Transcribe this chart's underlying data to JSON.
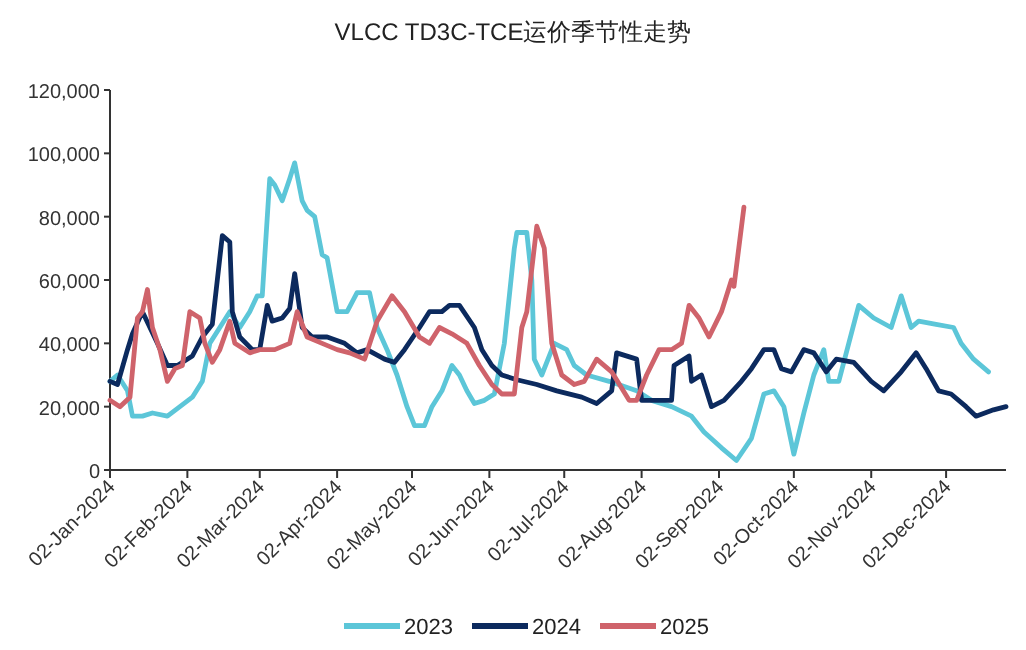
{
  "chart_data": {
    "type": "line",
    "title": "VLCC TD3C-TCE运价季节性走势",
    "xlim": [
      "2024-01-02",
      "2024-12-26"
    ],
    "xticks": [
      {
        "value": "2024-01-02",
        "label": "02-Jan-2024"
      },
      {
        "value": "2024-02-02",
        "label": "02-Feb-2024"
      },
      {
        "value": "2024-03-02",
        "label": "02-Mar-2024"
      },
      {
        "value": "2024-04-02",
        "label": "02-Apr-2024"
      },
      {
        "value": "2024-05-02",
        "label": "02-May-2024"
      },
      {
        "value": "2024-06-02",
        "label": "02-Jun-2024"
      },
      {
        "value": "2024-07-02",
        "label": "02-Jul-2024"
      },
      {
        "value": "2024-08-02",
        "label": "02-Aug-2024"
      },
      {
        "value": "2024-09-02",
        "label": "02-Sep-2024"
      },
      {
        "value": "2024-10-02",
        "label": "02-Oct-2024"
      },
      {
        "value": "2024-11-02",
        "label": "02-Nov-2024"
      },
      {
        "value": "2024-12-02",
        "label": "02-Dec-2024"
      }
    ],
    "ylim": [
      0,
      120000
    ],
    "yticks": [
      {
        "value": 0,
        "label": "0"
      },
      {
        "value": 20000,
        "label": "20,000"
      },
      {
        "value": 40000,
        "label": "40,000"
      },
      {
        "value": 60000,
        "label": "60,000"
      },
      {
        "value": 80000,
        "label": "80,000"
      },
      {
        "value": 100000,
        "label": "100,000"
      },
      {
        "value": 120000,
        "label": "120,000"
      }
    ],
    "legend": "bottom",
    "series": [
      {
        "name": "2023",
        "color": "#5cc6d8",
        "x": [
          "2024-01-02",
          "2024-01-05",
          "2024-01-09",
          "2024-01-11",
          "2024-01-15",
          "2024-01-19",
          "2024-01-25",
          "2024-01-30",
          "2024-02-04",
          "2024-02-08",
          "2024-02-11",
          "2024-02-15",
          "2024-02-19",
          "2024-02-23",
          "2024-02-27",
          "2024-03-01",
          "2024-03-03",
          "2024-03-06",
          "2024-03-08",
          "2024-03-11",
          "2024-03-14",
          "2024-03-16",
          "2024-03-19",
          "2024-03-21",
          "2024-03-24",
          "2024-03-27",
          "2024-03-29",
          "2024-04-02",
          "2024-04-06",
          "2024-04-10",
          "2024-04-15",
          "2024-04-18",
          "2024-04-22",
          "2024-04-26",
          "2024-04-30",
          "2024-05-03",
          "2024-05-07",
          "2024-05-10",
          "2024-05-14",
          "2024-05-18",
          "2024-05-21",
          "2024-05-24",
          "2024-05-27",
          "2024-05-31",
          "2024-06-04",
          "2024-06-08",
          "2024-06-12",
          "2024-06-13",
          "2024-06-17",
          "2024-06-19",
          "2024-06-20",
          "2024-06-23",
          "2024-06-28",
          "2024-07-03",
          "2024-07-06",
          "2024-07-11",
          "2024-07-20",
          "2024-07-31",
          "2024-08-06",
          "2024-08-14",
          "2024-08-22",
          "2024-08-27",
          "2024-09-03",
          "2024-09-09",
          "2024-09-15",
          "2024-09-20",
          "2024-09-24",
          "2024-09-28",
          "2024-10-02",
          "2024-10-06",
          "2024-10-10",
          "2024-10-14",
          "2024-10-16",
          "2024-10-20",
          "2024-10-24",
          "2024-10-28",
          "2024-11-03",
          "2024-11-10",
          "2024-11-14",
          "2024-11-18",
          "2024-11-21",
          "2024-11-28",
          "2024-12-05",
          "2024-12-08",
          "2024-12-13",
          "2024-12-19"
        ],
        "values": [
          28000,
          30000,
          25000,
          17000,
          17000,
          18000,
          17000,
          20000,
          23000,
          28000,
          40000,
          45000,
          50000,
          45000,
          50000,
          55000,
          55000,
          92000,
          90000,
          85000,
          92000,
          97000,
          85000,
          82000,
          80000,
          68000,
          67000,
          50000,
          50000,
          56000,
          56000,
          45000,
          38000,
          30000,
          20000,
          14000,
          14000,
          20000,
          25000,
          33000,
          30000,
          25000,
          21000,
          22000,
          24000,
          40000,
          70000,
          75000,
          75000,
          60000,
          35000,
          30000,
          40000,
          38000,
          33000,
          30000,
          28000,
          25000,
          22000,
          20000,
          17000,
          12000,
          7000,
          3000,
          10000,
          24000,
          25000,
          20000,
          5000,
          18000,
          30000,
          38000,
          28000,
          28000,
          40000,
          52000,
          48000,
          45000,
          55000,
          45000,
          47000,
          46000,
          45000,
          40000,
          35000,
          31000
        ]
      },
      {
        "name": "2024",
        "color": "#0c2a5e",
        "x": [
          "2024-01-02",
          "2024-01-05",
          "2024-01-09",
          "2024-01-11",
          "2024-01-15",
          "2024-01-21",
          "2024-01-25",
          "2024-01-29",
          "2024-02-04",
          "2024-02-08",
          "2024-02-12",
          "2024-02-16",
          "2024-02-19",
          "2024-02-20",
          "2024-02-23",
          "2024-02-28",
          "2024-03-02",
          "2024-03-05",
          "2024-03-07",
          "2024-03-11",
          "2024-03-14",
          "2024-03-16",
          "2024-03-19",
          "2024-03-23",
          "2024-03-29",
          "2024-04-05",
          "2024-04-10",
          "2024-04-14",
          "2024-04-21",
          "2024-04-25",
          "2024-04-29",
          "2024-05-05",
          "2024-05-09",
          "2024-05-14",
          "2024-05-17",
          "2024-05-21",
          "2024-05-27",
          "2024-05-30",
          "2024-06-03",
          "2024-06-07",
          "2024-06-13",
          "2024-06-21",
          "2024-06-29",
          "2024-07-09",
          "2024-07-15",
          "2024-07-21",
          "2024-07-23",
          "2024-07-31",
          "2024-08-02",
          "2024-08-06",
          "2024-08-14",
          "2024-08-15",
          "2024-08-21",
          "2024-08-22",
          "2024-08-26",
          "2024-08-30",
          "2024-09-04",
          "2024-09-11",
          "2024-09-15",
          "2024-09-20",
          "2024-09-24",
          "2024-09-27",
          "2024-10-01",
          "2024-10-06",
          "2024-10-10",
          "2024-10-15",
          "2024-10-19",
          "2024-10-26",
          "2024-11-02",
          "2024-11-07",
          "2024-11-14",
          "2024-11-20",
          "2024-11-24",
          "2024-11-29",
          "2024-12-04",
          "2024-12-10",
          "2024-12-14",
          "2024-12-21",
          "2024-12-26"
        ],
        "values": [
          28000,
          27000,
          38000,
          43000,
          50000,
          40000,
          33000,
          33000,
          36000,
          42000,
          46000,
          74000,
          72000,
          50000,
          42000,
          38000,
          38000,
          52000,
          47000,
          48000,
          51000,
          62000,
          45000,
          42000,
          42000,
          40000,
          37000,
          38000,
          35000,
          34000,
          38000,
          45000,
          50000,
          50000,
          52000,
          52000,
          45000,
          38000,
          33000,
          30000,
          28500,
          27000,
          25000,
          23000,
          21000,
          25000,
          37000,
          35000,
          22000,
          22000,
          22000,
          33000,
          36000,
          28000,
          30000,
          20000,
          22000,
          28000,
          32000,
          38000,
          38000,
          32000,
          31000,
          38000,
          37000,
          31000,
          35000,
          34000,
          28000,
          25000,
          31000,
          37000,
          32000,
          25000,
          24000,
          20000,
          17000,
          19000,
          20000
        ]
      },
      {
        "name": "2025",
        "color": "#cf636b",
        "x": [
          "2024-01-02",
          "2024-01-06",
          "2024-01-10",
          "2024-01-13",
          "2024-01-15",
          "2024-01-17",
          "2024-01-19",
          "2024-01-22",
          "2024-01-25",
          "2024-01-28",
          "2024-01-31",
          "2024-02-03",
          "2024-02-07",
          "2024-02-09",
          "2024-02-12",
          "2024-02-15",
          "2024-02-19",
          "2024-02-21",
          "2024-02-27",
          "2024-03-02",
          "2024-03-08",
          "2024-03-14",
          "2024-03-17",
          "2024-03-21",
          "2024-03-27",
          "2024-04-02",
          "2024-04-07",
          "2024-04-13",
          "2024-04-18",
          "2024-04-24",
          "2024-04-29",
          "2024-05-05",
          "2024-05-09",
          "2024-05-13",
          "2024-05-18",
          "2024-05-24",
          "2024-05-29",
          "2024-06-03",
          "2024-06-07",
          "2024-06-12",
          "2024-06-15",
          "2024-06-17",
          "2024-06-21",
          "2024-06-24",
          "2024-06-27",
          "2024-07-01",
          "2024-07-06",
          "2024-07-10",
          "2024-07-15",
          "2024-07-21",
          "2024-07-28",
          "2024-07-31",
          "2024-08-04",
          "2024-08-09",
          "2024-08-14",
          "2024-08-18",
          "2024-08-21",
          "2024-08-25",
          "2024-08-29",
          "2024-09-03",
          "2024-09-07",
          "2024-09-08",
          "2024-09-12"
        ],
        "values": [
          22000,
          20000,
          23000,
          48000,
          50000,
          57000,
          45000,
          38000,
          28000,
          32000,
          33000,
          50000,
          48000,
          40000,
          34000,
          38000,
          47000,
          40000,
          37000,
          38000,
          38000,
          40000,
          50000,
          42000,
          40000,
          38000,
          37000,
          35000,
          47000,
          55000,
          50000,
          42000,
          40000,
          45000,
          43000,
          40000,
          33000,
          27000,
          24000,
          24000,
          45000,
          50000,
          77000,
          70000,
          40000,
          30000,
          27000,
          28000,
          35000,
          31000,
          22000,
          22000,
          30000,
          38000,
          38000,
          40000,
          52000,
          48000,
          42000,
          50000,
          60000,
          58000,
          83000
        ]
      }
    ]
  }
}
